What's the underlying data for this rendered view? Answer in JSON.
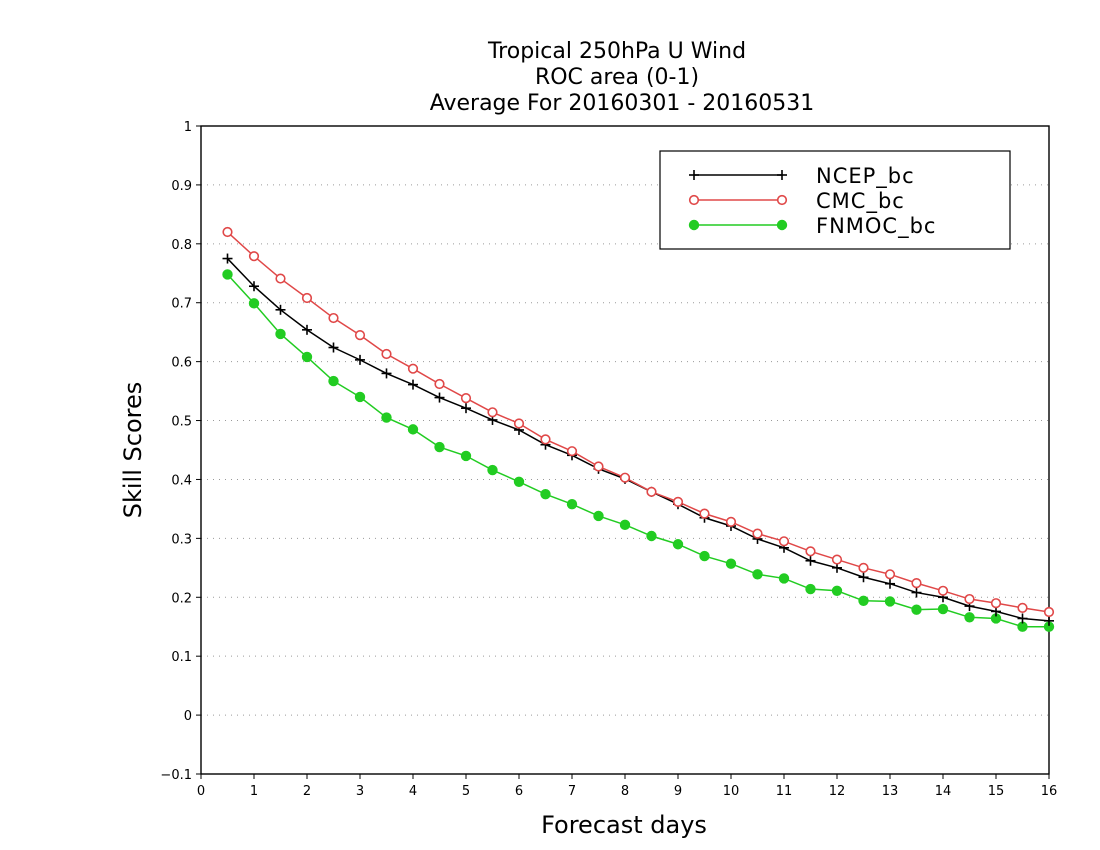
{
  "chart_data": {
    "type": "line",
    "title": [
      "Tropical 250hPa U Wind",
      "ROC area (0-1)",
      "Average For 20160301 - 20160531"
    ],
    "xlabel": "Forecast days",
    "ylabel": "Skill Scores",
    "xlim": [
      0,
      16
    ],
    "ylim": [
      -0.1,
      1
    ],
    "xticks": [
      0,
      1,
      2,
      3,
      4,
      5,
      6,
      7,
      8,
      9,
      10,
      11,
      12,
      13,
      14,
      15,
      16
    ],
    "yticks": [
      -0.1,
      0,
      0.1,
      0.2,
      0.3,
      0.4,
      0.5,
      0.6,
      0.7,
      0.8,
      0.9,
      1
    ],
    "ytick_labels": [
      "−0.1",
      "0",
      "0.1",
      "0.2",
      "0.3",
      "0.4",
      "0.5",
      "0.6",
      "0.7",
      "0.8",
      "0.9",
      "1"
    ],
    "grid": "horizontal dotted",
    "legend_position": "top-right",
    "x": [
      0.5,
      1,
      1.5,
      2,
      2.5,
      3,
      3.5,
      4,
      4.5,
      5,
      5.5,
      6,
      6.5,
      7,
      7.5,
      8,
      8.5,
      9,
      9.5,
      10,
      10.5,
      11,
      11.5,
      12,
      12.5,
      13,
      13.5,
      14,
      14.5,
      15,
      15.5,
      16
    ],
    "series": [
      {
        "name": "NCEP_bc",
        "color": "#000000",
        "marker": "plus",
        "values": [
          0.775,
          0.728,
          0.688,
          0.654,
          0.624,
          0.603,
          0.58,
          0.561,
          0.539,
          0.521,
          0.501,
          0.484,
          0.459,
          0.441,
          0.418,
          0.401,
          0.379,
          0.358,
          0.335,
          0.321,
          0.299,
          0.284,
          0.262,
          0.25,
          0.234,
          0.223,
          0.208,
          0.2,
          0.185,
          0.176,
          0.164,
          0.16
        ]
      },
      {
        "name": "CMC_bc",
        "color": "#e04848",
        "marker": "open-circle",
        "values": [
          0.82,
          0.779,
          0.741,
          0.708,
          0.674,
          0.645,
          0.613,
          0.588,
          0.562,
          0.538,
          0.514,
          0.495,
          0.468,
          0.448,
          0.422,
          0.403,
          0.379,
          0.362,
          0.342,
          0.328,
          0.308,
          0.295,
          0.278,
          0.264,
          0.25,
          0.239,
          0.224,
          0.211,
          0.197,
          0.19,
          0.182,
          0.175
        ]
      },
      {
        "name": "FNMOC_bc",
        "color": "#22cc22",
        "marker": "filled-circle",
        "values": [
          0.748,
          0.699,
          0.647,
          0.608,
          0.567,
          0.54,
          0.505,
          0.485,
          0.455,
          0.44,
          0.416,
          0.396,
          0.375,
          0.358,
          0.338,
          0.323,
          0.304,
          0.29,
          0.27,
          0.257,
          0.239,
          0.232,
          0.214,
          0.211,
          0.194,
          0.193,
          0.179,
          0.18,
          0.166,
          0.164,
          0.15,
          0.15
        ]
      }
    ]
  }
}
